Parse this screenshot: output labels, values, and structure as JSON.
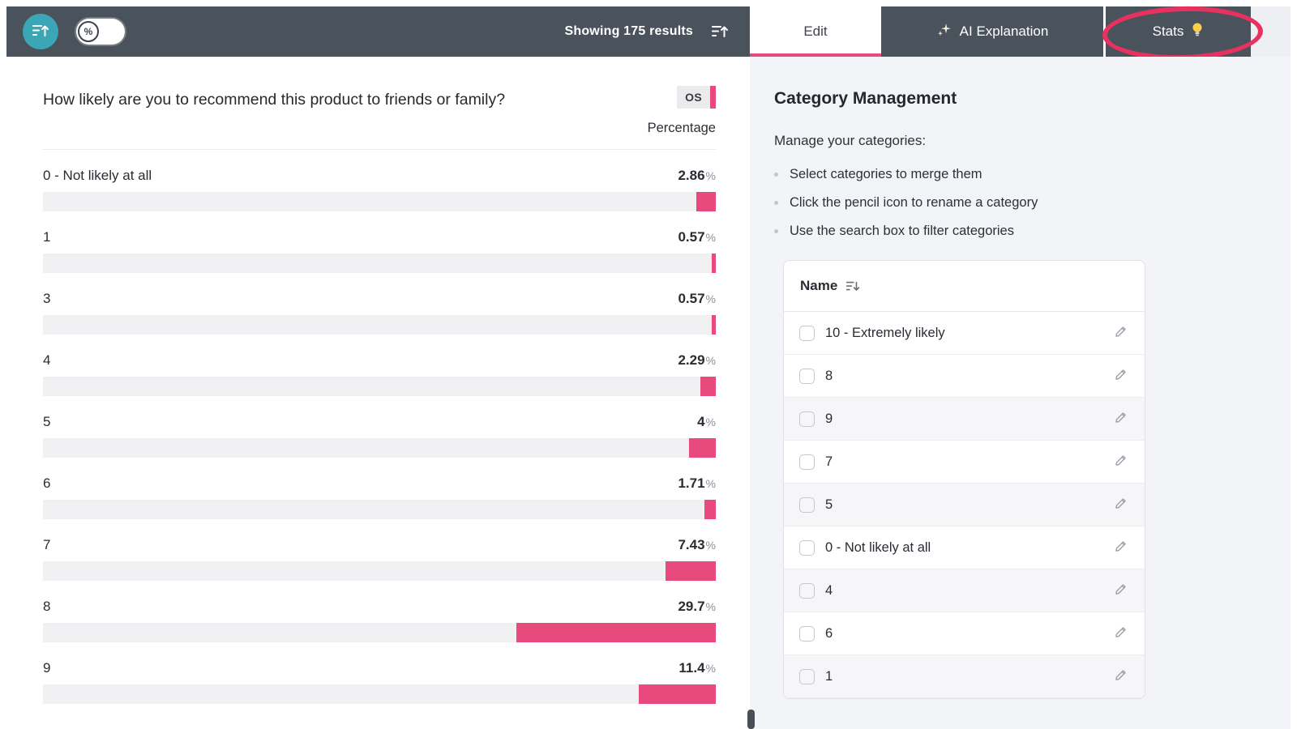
{
  "toolbar": {
    "results_text": "Showing 175 results",
    "percent_toggle": "%"
  },
  "tabs": {
    "edit": "Edit",
    "ai": "AI Explanation",
    "stats": "Stats"
  },
  "question": {
    "title": "How likely are you to recommend this product to friends or family?",
    "badge": "OS",
    "column_label": "Percentage"
  },
  "chart_data": {
    "type": "bar",
    "orientation": "horizontal-right-aligned",
    "categories": [
      "0 - Not likely at all",
      "1",
      "3",
      "4",
      "5",
      "6",
      "7",
      "8",
      "9"
    ],
    "values": [
      2.86,
      0.57,
      0.57,
      2.29,
      4,
      1.71,
      7.43,
      29.7,
      11.4
    ],
    "value_labels": [
      "2.86",
      "0.57",
      "0.57",
      "2.29",
      "4",
      "1.71",
      "7.43",
      "29.7",
      "11.4"
    ],
    "unit": "%",
    "xlim": [
      0,
      100
    ],
    "bar_color": "#e84a7d",
    "track_color": "#f1f1f4"
  },
  "side_panel": {
    "title": "Category Management",
    "subtitle": "Manage your categories:",
    "bullets": [
      "Select categories to merge them",
      "Click the pencil icon to rename a category",
      "Use the search box to filter categories"
    ],
    "table_header": "Name",
    "categories": [
      "10 - Extremely likely",
      "8",
      "9",
      "7",
      "5",
      "0 - Not likely at all",
      "4",
      "6",
      "1"
    ]
  },
  "colors": {
    "accent_pink": "#e84a7d",
    "toolbar_bg": "#4a525b",
    "teal_button": "#3aa6b6",
    "panel_bg": "#f3f4f7",
    "annotation": "#e8315f"
  }
}
